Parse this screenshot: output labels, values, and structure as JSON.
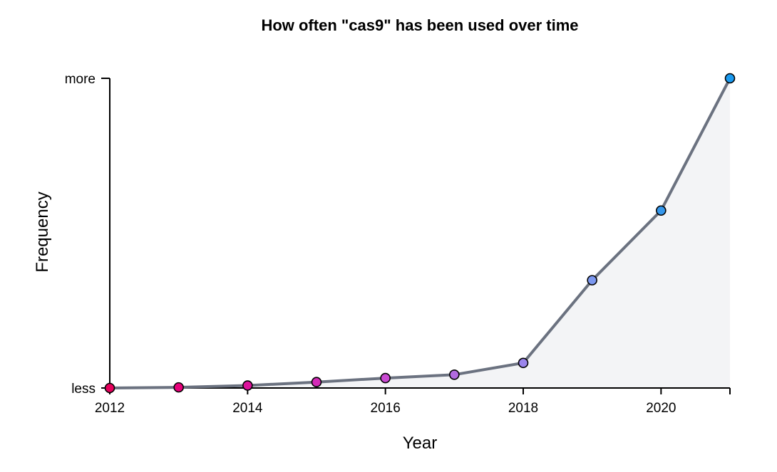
{
  "chart_data": {
    "type": "area",
    "title": "How often \"cas9\" has been used over time",
    "xlabel": "Year",
    "ylabel": "Frequency",
    "xlim": [
      2012,
      2021
    ],
    "ylim": [
      0,
      100
    ],
    "x_ticks": [
      {
        "value": 2012,
        "label": "2012"
      },
      {
        "value": 2014,
        "label": "2014"
      },
      {
        "value": 2016,
        "label": "2016"
      },
      {
        "value": 2018,
        "label": "2018"
      },
      {
        "value": 2020,
        "label": "2020"
      }
    ],
    "y_ticks": [
      {
        "value": 0,
        "label": "less"
      },
      {
        "value": 100,
        "label": "more"
      }
    ],
    "x": [
      2012,
      2013,
      2014,
      2015,
      2016,
      2017,
      2018,
      2019,
      2020,
      2021
    ],
    "values": [
      0,
      0.2,
      0.8,
      1.9,
      3.2,
      4.3,
      8.1,
      34.8,
      57.3,
      100
    ],
    "point_colors": [
      "#e6005c",
      "#e6007a",
      "#dd129b",
      "#d42bb8",
      "#c94ad2",
      "#b26ae0",
      "#9b85ec",
      "#7c98f0",
      "#3597eb",
      "#1a9af0"
    ],
    "line_color": "#6b7280",
    "fill_color": "#f3f4f6",
    "grid": false
  }
}
